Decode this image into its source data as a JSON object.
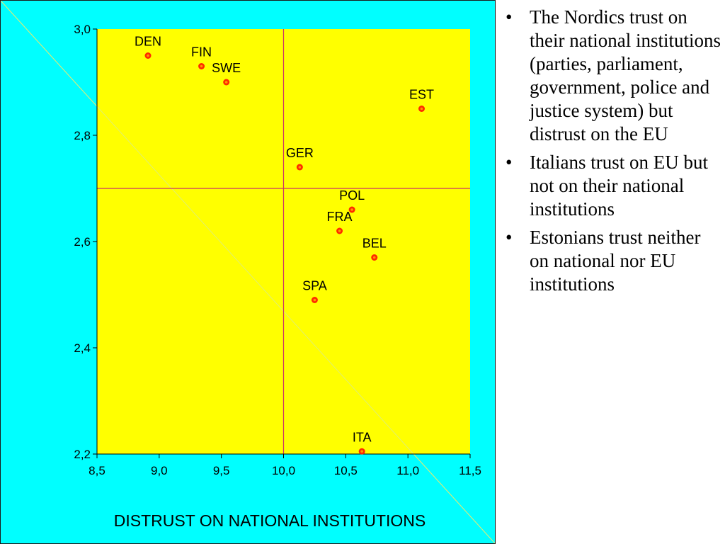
{
  "colors": {
    "panel_background": "#00ffff",
    "plot_background": "#ffff00",
    "reference_line": "#cc3366",
    "diagonal_line": "#66e6e6",
    "point_fill": "#ff2a00",
    "point_core": "#ff9900"
  },
  "chart_data": {
    "type": "scatter",
    "title": "",
    "xlabel": "DISTRUST ON NATIONAL INSTITUTIONS",
    "ylabel": "",
    "xlim": [
      8.5,
      11.5
    ],
    "ylim": [
      2.2,
      3.0
    ],
    "x_ticks": [
      "8,5",
      "9,0",
      "9,5",
      "10,0",
      "10,5",
      "11,0",
      "11,5"
    ],
    "y_ticks": [
      "2,2",
      "2,4",
      "2,6",
      "2,8",
      "3,0"
    ],
    "reference_lines": {
      "x": 10.0,
      "y": 2.7
    },
    "diagonal": true,
    "grid": false,
    "points": [
      {
        "label": "DEN",
        "x": 8.91,
        "y": 2.95
      },
      {
        "label": "FIN",
        "x": 9.34,
        "y": 2.93
      },
      {
        "label": "SWE",
        "x": 9.54,
        "y": 2.9
      },
      {
        "label": "EST",
        "x": 11.11,
        "y": 2.85
      },
      {
        "label": "GER",
        "x": 10.13,
        "y": 2.74
      },
      {
        "label": "POL",
        "x": 10.55,
        "y": 2.66
      },
      {
        "label": "FRA",
        "x": 10.45,
        "y": 2.62
      },
      {
        "label": "BEL",
        "x": 10.73,
        "y": 2.57
      },
      {
        "label": "SPA",
        "x": 10.25,
        "y": 2.49
      },
      {
        "label": "ITA",
        "x": 10.63,
        "y": 2.205
      }
    ]
  },
  "notes": {
    "items": [
      "The Nordics trust on their national institutions (parties, parliament, government, police and justice system) but distrust on the EU",
      "Italians trust on EU but not on their national institutions",
      "Estonians trust neither on national nor EU institutions"
    ]
  }
}
